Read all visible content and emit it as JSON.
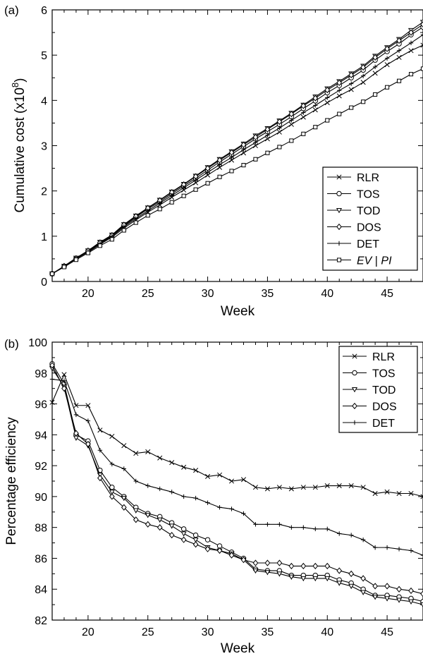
{
  "chart_data": [
    {
      "panel_label": "(a)",
      "type": "line",
      "xlabel": "Week",
      "ylabel": "Cumulative cost (x10",
      "ylabel_sup": "8",
      "ylabel_close": ")",
      "xlim": [
        17,
        48
      ],
      "ylim": [
        0,
        6
      ],
      "xticks": [
        20,
        25,
        30,
        35,
        40,
        45
      ],
      "xtick_labels": [
        "20",
        "25",
        "30",
        "35",
        "40",
        "45"
      ],
      "yticks": [
        0,
        1,
        2,
        3,
        4,
        5,
        6
      ],
      "ytick_labels": [
        "0",
        "1",
        "2",
        "3",
        "4",
        "5",
        "6"
      ],
      "grid": false,
      "legend_position": "bottom-right",
      "x": [
        17,
        18,
        19,
        20,
        21,
        22,
        23,
        24,
        25,
        26,
        27,
        28,
        29,
        30,
        31,
        32,
        33,
        34,
        35,
        36,
        37,
        38,
        39,
        40,
        41,
        42,
        43,
        44,
        45,
        46,
        47,
        48
      ],
      "series": [
        {
          "name": "RLR",
          "marker": "x",
          "values": [
            0.17,
            0.33,
            0.5,
            0.65,
            0.82,
            0.98,
            1.18,
            1.36,
            1.53,
            1.69,
            1.86,
            2.02,
            2.18,
            2.35,
            2.52,
            2.68,
            2.84,
            3.0,
            3.15,
            3.3,
            3.47,
            3.63,
            3.79,
            3.95,
            4.1,
            4.24,
            4.4,
            4.6,
            4.79,
            4.95,
            5.1,
            5.22
          ]
        },
        {
          "name": "TOS",
          "marker": "o",
          "values": [
            0.17,
            0.33,
            0.51,
            0.67,
            0.85,
            1.01,
            1.23,
            1.42,
            1.6,
            1.76,
            1.94,
            2.11,
            2.28,
            2.46,
            2.64,
            2.81,
            2.98,
            3.15,
            3.31,
            3.47,
            3.64,
            3.82,
            3.99,
            4.17,
            4.33,
            4.5,
            4.67,
            4.89,
            5.08,
            5.25,
            5.45,
            5.62
          ]
        },
        {
          "name": "TOD",
          "marker": "v",
          "values": [
            0.17,
            0.34,
            0.52,
            0.68,
            0.87,
            1.03,
            1.26,
            1.45,
            1.63,
            1.8,
            1.98,
            2.15,
            2.33,
            2.52,
            2.7,
            2.87,
            3.04,
            3.22,
            3.38,
            3.55,
            3.72,
            3.9,
            4.08,
            4.26,
            4.42,
            4.59,
            4.76,
            4.98,
            5.17,
            5.35,
            5.55,
            5.73
          ]
        },
        {
          "name": "DOS",
          "marker": "d",
          "values": [
            0.17,
            0.34,
            0.51,
            0.68,
            0.86,
            1.02,
            1.25,
            1.44,
            1.62,
            1.79,
            1.97,
            2.14,
            2.32,
            2.5,
            2.68,
            2.85,
            3.02,
            3.19,
            3.36,
            3.53,
            3.7,
            3.88,
            4.05,
            4.23,
            4.39,
            4.56,
            4.73,
            4.95,
            5.14,
            5.32,
            5.5,
            5.68
          ]
        },
        {
          "name": "DET",
          "marker": "+",
          "values": [
            0.17,
            0.33,
            0.5,
            0.66,
            0.84,
            1.0,
            1.21,
            1.39,
            1.56,
            1.73,
            1.9,
            2.07,
            2.24,
            2.41,
            2.58,
            2.74,
            2.91,
            3.07,
            3.23,
            3.39,
            3.56,
            3.73,
            3.89,
            4.06,
            4.22,
            4.37,
            4.54,
            4.74,
            4.93,
            5.1,
            5.27,
            5.45
          ]
        },
        {
          "name": "EV|PI",
          "name_display": "EV",
          "name_display_2": "PI",
          "marker": "s",
          "values": [
            0.17,
            0.32,
            0.48,
            0.63,
            0.79,
            0.93,
            1.13,
            1.3,
            1.46,
            1.6,
            1.75,
            1.89,
            2.03,
            2.17,
            2.31,
            2.44,
            2.57,
            2.7,
            2.84,
            2.97,
            3.11,
            3.26,
            3.41,
            3.56,
            3.7,
            3.84,
            3.97,
            4.13,
            4.29,
            4.43,
            4.58,
            4.7
          ]
        }
      ]
    },
    {
      "panel_label": "(b)",
      "type": "line",
      "xlabel": "Week",
      "ylabel": "Percentage efficiency",
      "xlim": [
        17,
        48
      ],
      "ylim": [
        82,
        100
      ],
      "xticks": [
        20,
        25,
        30,
        35,
        40,
        45
      ],
      "xtick_labels": [
        "20",
        "25",
        "30",
        "35",
        "40",
        "45"
      ],
      "yticks": [
        82,
        84,
        86,
        88,
        90,
        92,
        94,
        96,
        98,
        100
      ],
      "ytick_labels": [
        "82",
        "84",
        "86",
        "88",
        "90",
        "92",
        "94",
        "96",
        "98",
        "100"
      ],
      "grid": false,
      "legend_position": "top-right",
      "x": [
        17,
        18,
        19,
        20,
        21,
        22,
        23,
        24,
        25,
        26,
        27,
        28,
        29,
        30,
        31,
        32,
        33,
        34,
        35,
        36,
        37,
        38,
        39,
        40,
        41,
        42,
        43,
        44,
        45,
        46,
        47,
        48
      ],
      "series": [
        {
          "name": "RLR",
          "marker": "x",
          "values": [
            96.1,
            97.9,
            95.9,
            95.9,
            94.3,
            93.9,
            93.3,
            92.8,
            92.9,
            92.5,
            92.2,
            91.9,
            91.7,
            91.3,
            91.4,
            91.0,
            91.1,
            90.6,
            90.5,
            90.6,
            90.5,
            90.6,
            90.6,
            90.7,
            90.7,
            90.7,
            90.6,
            90.2,
            90.3,
            90.2,
            90.2,
            90.0
          ]
        },
        {
          "name": "TOS",
          "marker": "o",
          "values": [
            98.6,
            97.3,
            94.0,
            93.6,
            91.7,
            90.6,
            90.0,
            89.3,
            88.9,
            88.7,
            88.3,
            87.9,
            87.5,
            87.2,
            86.8,
            86.4,
            86.0,
            85.3,
            85.2,
            85.2,
            84.9,
            84.9,
            84.9,
            84.9,
            84.6,
            84.4,
            84.0,
            83.6,
            83.6,
            83.5,
            83.4,
            83.2
          ]
        },
        {
          "name": "TOD",
          "marker": "v",
          "values": [
            98.3,
            97.1,
            93.8,
            93.3,
            91.4,
            90.3,
            89.9,
            89.1,
            88.8,
            88.5,
            88.1,
            87.6,
            87.2,
            86.7,
            86.5,
            86.3,
            85.9,
            85.2,
            85.1,
            85.0,
            84.8,
            84.7,
            84.7,
            84.7,
            84.4,
            84.2,
            83.8,
            83.5,
            83.4,
            83.3,
            83.2,
            83.0
          ]
        },
        {
          "name": "DOS",
          "marker": "d",
          "values": [
            98.5,
            97.0,
            94.1,
            93.4,
            91.2,
            90.0,
            89.3,
            88.5,
            88.2,
            88.0,
            87.5,
            87.2,
            86.9,
            86.6,
            86.5,
            86.2,
            85.9,
            85.7,
            85.7,
            85.7,
            85.5,
            85.5,
            85.5,
            85.5,
            85.2,
            85.0,
            84.7,
            84.2,
            84.2,
            84.0,
            83.9,
            83.7
          ]
        },
        {
          "name": "DET",
          "marker": "+",
          "values": [
            97.6,
            97.5,
            95.3,
            94.9,
            93.0,
            92.1,
            91.8,
            91.0,
            90.7,
            90.5,
            90.3,
            90.0,
            89.9,
            89.6,
            89.3,
            89.2,
            88.9,
            88.2,
            88.2,
            88.2,
            88.0,
            88.0,
            87.9,
            87.9,
            87.6,
            87.5,
            87.2,
            86.7,
            86.7,
            86.6,
            86.5,
            86.2
          ]
        }
      ]
    }
  ]
}
